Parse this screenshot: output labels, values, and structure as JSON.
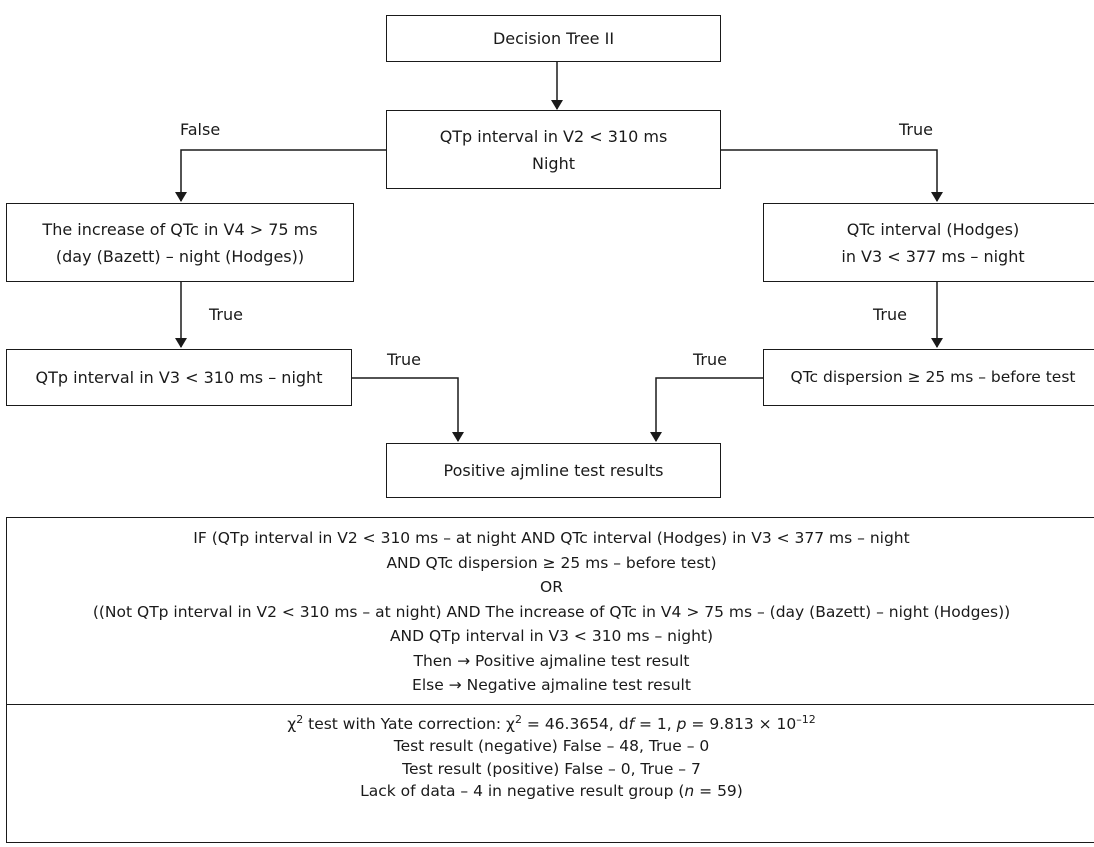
{
  "tree": {
    "root": "Decision Tree II",
    "q1": {
      "line1": "QTp interval in V2 < 310 ms",
      "line2": "Night"
    },
    "left1": {
      "line1": "The increase of QTc in V4 > 75 ms",
      "line2": "(day (Bazett) – night (Hodges))"
    },
    "right1": {
      "line1": "QTc interval (Hodges)",
      "line2": "in V3 < 377 ms – night"
    },
    "left2": "QTp interval in V3 < 310 ms – night",
    "right2": "QTc dispersion ≥ 25 ms – before test",
    "result": "Positive ajmline test results",
    "labels": {
      "false": "False",
      "true_q1": "True",
      "true_left1": "True",
      "true_right1": "True",
      "true_left2": "True",
      "true_right2": "True"
    }
  },
  "rule": {
    "lines": [
      "IF (QTp interval in V2 < 310 ms – at night AND QTc interval (Hodges) in V3 < 377 ms – night",
      "AND QTc dispersion ≥ 25 ms – before test)",
      "OR",
      "((Not QTp interval in V2 < 310 ms – at night) AND The increase of QTc in V4 > 75 ms – (day (Bazett) – night (Hodges))",
      "AND QTp interval in V3 < 310 ms – night)",
      "Then → Positive ajmaline test result",
      "Else → Negative ajmaline test result"
    ]
  },
  "stats": {
    "chi_prefix": "χ",
    "chi_sup": "2",
    "chi_text1": " test with Yate correction: χ",
    "chi_sup2": "2",
    "chi_text2": " = 46.3654, d",
    "df_f": "f",
    "chi_text3": " = 1, ",
    "p_label": "p",
    "chi_text4": " = 9.813 × 10",
    "p_exp": "–12",
    "line2": "Test result (negative) False – 48, True – 0",
    "line3": "Test result (positive) False – 0, True – 7",
    "line4_a": "Lack of data – 4 in negative result group (",
    "line4_n": "n",
    "line4_b": " = 59)"
  }
}
